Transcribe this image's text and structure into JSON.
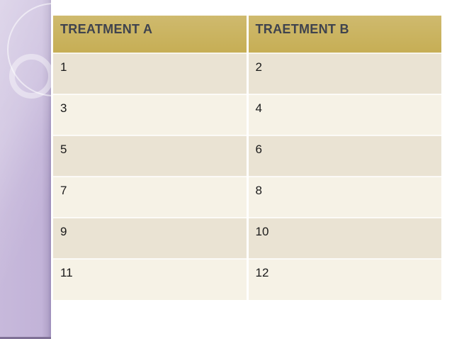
{
  "sidebar": {
    "colors": {
      "base": "#c2b3d8",
      "highlight": "#d6cbe8",
      "right_edge": "#9d8eba",
      "bottom_edge": "#7f7096"
    },
    "decor": [
      "outline-circle",
      "ring-circle"
    ]
  },
  "table": {
    "headers": [
      {
        "label": "TREATMENT A"
      },
      {
        "label": "TRAETMENT B"
      }
    ],
    "rows": [
      [
        "1",
        "2"
      ],
      [
        "3",
        "4"
      ],
      [
        "5",
        "6"
      ],
      [
        "7",
        "8"
      ],
      [
        "9",
        "10"
      ],
      [
        "11",
        "12"
      ]
    ],
    "colors": {
      "header_bg": "#c9b15e",
      "header_text": "#3f434e",
      "row_odd": "#eae3d3",
      "row_even": "#f6f2e6",
      "cell_text": "#1a1a1a"
    }
  }
}
